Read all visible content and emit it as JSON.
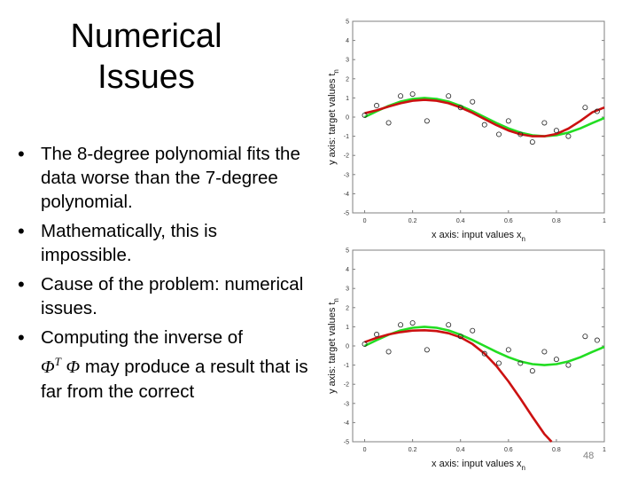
{
  "slide": {
    "title_line1": "Numerical",
    "title_line2": "Issues",
    "bullets": [
      "The 8-degree polynomial fits the data worse than the 7-degree polynomial.",
      "Mathematically, this is impossible.",
      "Cause of the problem: numerical issues."
    ],
    "bullet4": {
      "before": "Computing the inverse of",
      "phi_t": "Φ",
      "sup": "T",
      "phi": "Φ",
      "after": " may produce a result that is far from the correct"
    },
    "page_number": "48"
  },
  "chart_data": [
    {
      "type": "line",
      "xlabel": "x axis: input values x",
      "xlabel_sub": "n",
      "ylabel": "y axis: target values t",
      "ylabel_sub": "n",
      "xlim": [
        -0.05,
        1.0
      ],
      "ylim": [
        -5,
        5
      ],
      "xticks": [
        0,
        0.2,
        0.4,
        0.6,
        0.8,
        1
      ],
      "xtick_labels": [
        "0",
        "0.2",
        "0.4",
        "0.6",
        "0.8",
        "1"
      ],
      "yticks": [
        -5,
        -4,
        -3,
        -2,
        -1,
        0,
        1,
        2,
        3,
        4,
        5
      ],
      "ytick_labels": [
        "-5",
        "-4",
        "-3",
        "-2",
        "-1",
        "0",
        "1",
        "2",
        "3",
        "4",
        "5"
      ],
      "points": [
        [
          0.0,
          0.1
        ],
        [
          0.05,
          0.6
        ],
        [
          0.1,
          -0.3
        ],
        [
          0.15,
          1.1
        ],
        [
          0.2,
          1.2
        ],
        [
          0.26,
          -0.2
        ],
        [
          0.35,
          1.1
        ],
        [
          0.4,
          0.5
        ],
        [
          0.45,
          0.8
        ],
        [
          0.5,
          -0.4
        ],
        [
          0.56,
          -0.9
        ],
        [
          0.6,
          -0.2
        ],
        [
          0.65,
          -0.9
        ],
        [
          0.7,
          -1.3
        ],
        [
          0.75,
          -0.3
        ],
        [
          0.8,
          -0.7
        ],
        [
          0.85,
          -1.0
        ],
        [
          0.92,
          0.5
        ],
        [
          0.97,
          0.3
        ]
      ],
      "series": [
        {
          "color": "#22dd22",
          "x": [
            0,
            0.05,
            0.1,
            0.15,
            0.2,
            0.25,
            0.3,
            0.35,
            0.4,
            0.45,
            0.5,
            0.55,
            0.6,
            0.65,
            0.7,
            0.75,
            0.8,
            0.85,
            0.9,
            0.95,
            1
          ],
          "y": [
            0,
            0.3,
            0.59,
            0.81,
            0.95,
            1.0,
            0.95,
            0.81,
            0.59,
            0.31,
            0.0,
            -0.31,
            -0.59,
            -0.81,
            -0.95,
            -1.0,
            -0.95,
            -0.81,
            -0.59,
            -0.31,
            -0.05
          ]
        },
        {
          "color": "#cc1111",
          "x": [
            0,
            0.05,
            0.1,
            0.15,
            0.2,
            0.25,
            0.3,
            0.35,
            0.4,
            0.45,
            0.5,
            0.55,
            0.6,
            0.65,
            0.7,
            0.75,
            0.8,
            0.85,
            0.9,
            0.95,
            1
          ],
          "y": [
            0.2,
            0.35,
            0.55,
            0.72,
            0.85,
            0.9,
            0.85,
            0.72,
            0.5,
            0.22,
            -0.1,
            -0.42,
            -0.7,
            -0.9,
            -1.0,
            -1.0,
            -0.88,
            -0.6,
            -0.2,
            0.25,
            0.5
          ]
        }
      ]
    },
    {
      "type": "line",
      "xlabel": "x axis: input values x",
      "xlabel_sub": "n",
      "ylabel": "y axis: target values t",
      "ylabel_sub": "n",
      "xlim": [
        -0.05,
        1.0
      ],
      "ylim": [
        -5,
        5
      ],
      "xticks": [
        0,
        0.2,
        0.4,
        0.6,
        0.8,
        1
      ],
      "xtick_labels": [
        "0",
        "0.2",
        "0.4",
        "0.6",
        "0.8",
        "1"
      ],
      "yticks": [
        -5,
        -4,
        -3,
        -2,
        -1,
        0,
        1,
        2,
        3,
        4,
        5
      ],
      "ytick_labels": [
        "-5",
        "-4",
        "-3",
        "-2",
        "-1",
        "0",
        "1",
        "2",
        "3",
        "4",
        "5"
      ],
      "points": [
        [
          0.0,
          0.1
        ],
        [
          0.05,
          0.6
        ],
        [
          0.1,
          -0.3
        ],
        [
          0.15,
          1.1
        ],
        [
          0.2,
          1.2
        ],
        [
          0.26,
          -0.2
        ],
        [
          0.35,
          1.1
        ],
        [
          0.4,
          0.5
        ],
        [
          0.45,
          0.8
        ],
        [
          0.5,
          -0.4
        ],
        [
          0.56,
          -0.9
        ],
        [
          0.6,
          -0.2
        ],
        [
          0.65,
          -0.9
        ],
        [
          0.7,
          -1.3
        ],
        [
          0.75,
          -0.3
        ],
        [
          0.8,
          -0.7
        ],
        [
          0.85,
          -1.0
        ],
        [
          0.92,
          0.5
        ],
        [
          0.97,
          0.3
        ]
      ],
      "series": [
        {
          "color": "#22dd22",
          "x": [
            0,
            0.05,
            0.1,
            0.15,
            0.2,
            0.25,
            0.3,
            0.35,
            0.4,
            0.45,
            0.5,
            0.55,
            0.6,
            0.65,
            0.7,
            0.75,
            0.8,
            0.85,
            0.9,
            0.95,
            1
          ],
          "y": [
            0,
            0.3,
            0.59,
            0.81,
            0.95,
            1.0,
            0.95,
            0.81,
            0.59,
            0.31,
            0.0,
            -0.31,
            -0.59,
            -0.81,
            -0.95,
            -1.0,
            -0.95,
            -0.81,
            -0.59,
            -0.31,
            -0.05
          ]
        },
        {
          "color": "#cc1111",
          "x": [
            0,
            0.05,
            0.1,
            0.15,
            0.2,
            0.25,
            0.3,
            0.35,
            0.4,
            0.45,
            0.5,
            0.55,
            0.6,
            0.65,
            0.7,
            0.75,
            0.78
          ],
          "y": [
            0.2,
            0.42,
            0.6,
            0.72,
            0.8,
            0.82,
            0.78,
            0.66,
            0.45,
            0.1,
            -0.4,
            -1.05,
            -1.85,
            -2.75,
            -3.7,
            -4.6,
            -5.0
          ]
        }
      ]
    }
  ]
}
